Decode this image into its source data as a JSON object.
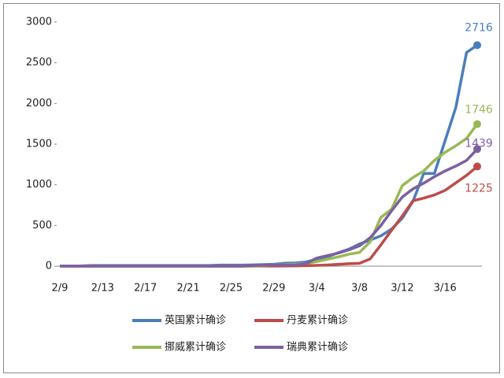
{
  "chart_data": {
    "type": "line",
    "categories": [
      "2/9",
      null,
      null,
      null,
      "2/13",
      null,
      null,
      null,
      "2/17",
      null,
      null,
      null,
      "2/21",
      null,
      null,
      null,
      "2/25",
      null,
      null,
      null,
      "2/29",
      null,
      null,
      null,
      "3/4",
      null,
      null,
      null,
      "3/8",
      null,
      null,
      null,
      "3/12",
      null,
      null,
      null,
      "3/16",
      null,
      null,
      null
    ],
    "series": [
      {
        "name": "英国累计确诊",
        "color": "#4a7ebb",
        "values": [
          3,
          3,
          4,
          8,
          8,
          8,
          9,
          9,
          9,
          9,
          9,
          9,
          9,
          9,
          9,
          13,
          13,
          13,
          16,
          19,
          23,
          36,
          40,
          51,
          85,
          115,
          164,
          209,
          273,
          321,
          373,
          456,
          590,
          798,
          1140,
          1140,
          1543,
          1950,
          2626,
          2716
        ]
      },
      {
        "name": "丹麦累计确诊",
        "color": "#be4b48",
        "values": [
          0,
          0,
          0,
          0,
          0,
          0,
          0,
          0,
          0,
          0,
          0,
          0,
          0,
          0,
          0,
          0,
          0,
          0,
          1,
          1,
          1,
          3,
          4,
          6,
          10,
          15,
          23,
          30,
          35,
          90,
          262,
          442,
          617,
          804,
          836,
          875,
          932,
          1024,
          1116,
          1225
        ]
      },
      {
        "name": "挪威累计确诊",
        "color": "#98b954",
        "values": [
          0,
          0,
          0,
          0,
          0,
          0,
          0,
          0,
          0,
          0,
          0,
          0,
          0,
          0,
          0,
          0,
          0,
          1,
          1,
          6,
          15,
          19,
          25,
          32,
          56,
          86,
          113,
          147,
          169,
          300,
          600,
          700,
          990,
          1090,
          1170,
          1300,
          1400,
          1480,
          1570,
          1746
        ]
      },
      {
        "name": "瑞典累计确诊",
        "color": "#7d60a0",
        "values": [
          1,
          1,
          1,
          1,
          1,
          1,
          1,
          1,
          1,
          1,
          1,
          1,
          1,
          1,
          1,
          1,
          1,
          1,
          7,
          12,
          13,
          14,
          15,
          30,
          100,
          130,
          160,
          200,
          250,
          350,
          500,
          680,
          850,
          950,
          1020,
          1100,
          1170,
          1230,
          1300,
          1439
        ]
      }
    ],
    "ylim": [
      0,
      3000
    ],
    "yticks": [
      0,
      500,
      1000,
      1500,
      2000,
      2500,
      3000
    ],
    "grid": false
  }
}
